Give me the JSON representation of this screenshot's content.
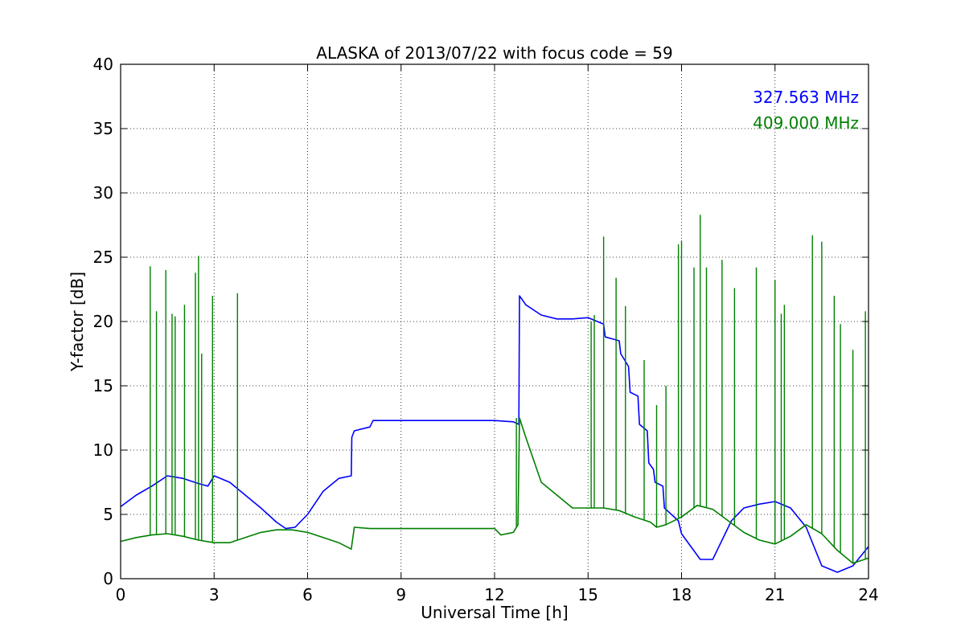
{
  "chart_data": {
    "type": "line",
    "title": "ALASKA of 2013/07/22 with focus code = 59",
    "xlabel": "Universal Time [h]",
    "ylabel": "Y-factor [dB]",
    "xlim": [
      0,
      24
    ],
    "ylim": [
      0,
      40
    ],
    "xticks": [
      0,
      3,
      6,
      9,
      12,
      15,
      18,
      21,
      24
    ],
    "yticks": [
      0,
      5,
      10,
      15,
      20,
      25,
      30,
      35,
      40
    ],
    "grid": true,
    "legend_position": "top-right",
    "series": [
      {
        "name": "327.563 MHz",
        "color": "#0000ff",
        "x": [
          0,
          0.5,
          1.0,
          1.5,
          2.0,
          2.5,
          2.8,
          3.0,
          3.5,
          4.0,
          4.5,
          5.0,
          5.3,
          5.6,
          6.0,
          6.5,
          7.0,
          7.4,
          7.42,
          7.5,
          8.0,
          8.1,
          12.0,
          12.6,
          12.78,
          12.8,
          13.0,
          13.5,
          14.0,
          14.5,
          15.0,
          15.5,
          15.55,
          16.0,
          16.05,
          16.3,
          16.35,
          16.6,
          16.65,
          16.9,
          16.95,
          17.1,
          17.15,
          17.4,
          17.45,
          17.9,
          18.0,
          18.3,
          18.6,
          19.0,
          19.3,
          19.6,
          20.0,
          20.5,
          21.0,
          21.5,
          22.0,
          22.5,
          23.0,
          23.5,
          24.0
        ],
        "values": [
          5.6,
          6.5,
          7.2,
          8.0,
          7.8,
          7.4,
          7.2,
          8.0,
          7.5,
          6.5,
          5.5,
          4.4,
          3.9,
          4.0,
          5.0,
          6.8,
          7.8,
          8.0,
          11.0,
          11.5,
          11.8,
          12.3,
          12.3,
          12.2,
          12.0,
          22.0,
          21.3,
          20.5,
          20.2,
          20.2,
          20.3,
          19.8,
          18.8,
          18.5,
          17.5,
          16.5,
          14.5,
          14.2,
          12.0,
          11.5,
          9.0,
          8.5,
          7.5,
          7.2,
          5.5,
          4.5,
          3.5,
          2.5,
          1.5,
          1.5,
          3.0,
          4.5,
          5.5,
          5.8,
          6.0,
          5.5,
          4.0,
          1.0,
          0.5,
          1.0,
          2.5
        ]
      },
      {
        "name": "409.000 MHz",
        "color": "#008000",
        "x": [
          0,
          0.5,
          1.0,
          1.5,
          2.0,
          2.5,
          3.0,
          3.5,
          4.0,
          4.5,
          5.0,
          5.5,
          6.0,
          6.5,
          7.0,
          7.4,
          7.5,
          8.0,
          8.1,
          12.0,
          12.2,
          12.6,
          12.75,
          12.8,
          13.0,
          13.5,
          14.0,
          14.5,
          15.0,
          15.5,
          16.0,
          16.5,
          17.0,
          17.2,
          17.5,
          18.0,
          18.5,
          19.0,
          19.5,
          20.0,
          20.5,
          21.0,
          21.5,
          22.0,
          22.5,
          23.0,
          23.5,
          24.0
        ],
        "values": [
          2.9,
          3.2,
          3.4,
          3.5,
          3.3,
          3.0,
          2.8,
          2.8,
          3.2,
          3.6,
          3.8,
          3.8,
          3.6,
          3.2,
          2.8,
          2.3,
          4.0,
          3.9,
          3.9,
          3.9,
          3.4,
          3.6,
          4.2,
          12.5,
          11.0,
          7.5,
          6.5,
          5.5,
          5.5,
          5.5,
          5.3,
          4.8,
          4.4,
          4.0,
          4.2,
          4.8,
          5.7,
          5.4,
          4.5,
          3.6,
          3.0,
          2.7,
          3.3,
          4.2,
          3.5,
          2.2,
          1.2,
          1.6
        ],
        "spikes": [
          [
            0.95,
            24.3
          ],
          [
            1.15,
            20.8
          ],
          [
            1.45,
            24.0
          ],
          [
            1.65,
            20.6
          ],
          [
            1.75,
            20.4
          ],
          [
            2.05,
            21.3
          ],
          [
            2.4,
            23.8
          ],
          [
            2.5,
            25.1
          ],
          [
            2.6,
            17.5
          ],
          [
            2.95,
            22.0
          ],
          [
            3.75,
            22.2
          ],
          [
            12.7,
            12.5
          ],
          [
            15.2,
            20.5
          ],
          [
            15.1,
            20.0
          ],
          [
            15.5,
            26.6
          ],
          [
            15.9,
            23.4
          ],
          [
            16.2,
            21.2
          ],
          [
            16.8,
            17.0
          ],
          [
            17.2,
            13.5
          ],
          [
            17.5,
            15.0
          ],
          [
            17.9,
            26.0
          ],
          [
            18.0,
            26.3
          ],
          [
            18.4,
            24.2
          ],
          [
            18.6,
            28.3
          ],
          [
            18.8,
            24.2
          ],
          [
            19.3,
            24.8
          ],
          [
            19.7,
            22.6
          ],
          [
            20.4,
            24.2
          ],
          [
            21.0,
            23.2
          ],
          [
            21.2,
            20.6
          ],
          [
            21.3,
            21.3
          ],
          [
            22.2,
            26.7
          ],
          [
            22.5,
            26.2
          ],
          [
            22.9,
            22.0
          ],
          [
            23.1,
            19.8
          ],
          [
            23.5,
            17.8
          ],
          [
            23.9,
            20.8
          ]
        ]
      }
    ]
  }
}
